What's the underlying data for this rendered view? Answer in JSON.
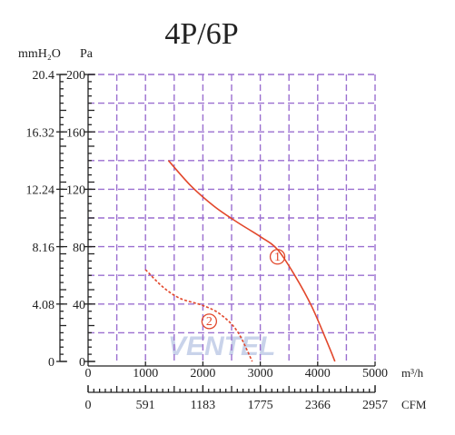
{
  "chart_data": {
    "type": "line",
    "title": "4P/6P",
    "ylabel": "Pa",
    "y2label": "mmH₂O",
    "xlabel": "m³/h",
    "x2label": "CFM",
    "watermark": "VENTEL",
    "xlim": [
      0,
      5000
    ],
    "xticks": [
      0,
      1000,
      2000,
      3000,
      4000,
      5000
    ],
    "x2lim": [
      0,
      2957
    ],
    "x2ticks": [
      0,
      591,
      1183,
      1775,
      2366,
      2957
    ],
    "ylim": [
      0,
      200
    ],
    "yticks": [
      0,
      40,
      80,
      120,
      160,
      200
    ],
    "y2lim": [
      0,
      20.4
    ],
    "y2ticks": [
      0,
      4.08,
      8.16,
      12.24,
      16.32,
      20.4
    ],
    "grid": true,
    "series": [
      {
        "name": "1",
        "color": "#e2472b",
        "dashed": false,
        "x": [
          1400,
          1800,
          2200,
          2600,
          3000,
          3300,
          3600,
          3900,
          4200,
          4300
        ],
        "values": [
          140,
          122,
          108,
          97,
          87,
          78,
          60,
          38,
          10,
          0
        ]
      },
      {
        "name": "2",
        "color": "#e2472b",
        "dashed": true,
        "x": [
          1000,
          1300,
          1600,
          2000,
          2300,
          2600,
          2860
        ],
        "values": [
          64,
          52,
          44,
          39,
          33,
          21,
          0
        ]
      }
    ]
  }
}
